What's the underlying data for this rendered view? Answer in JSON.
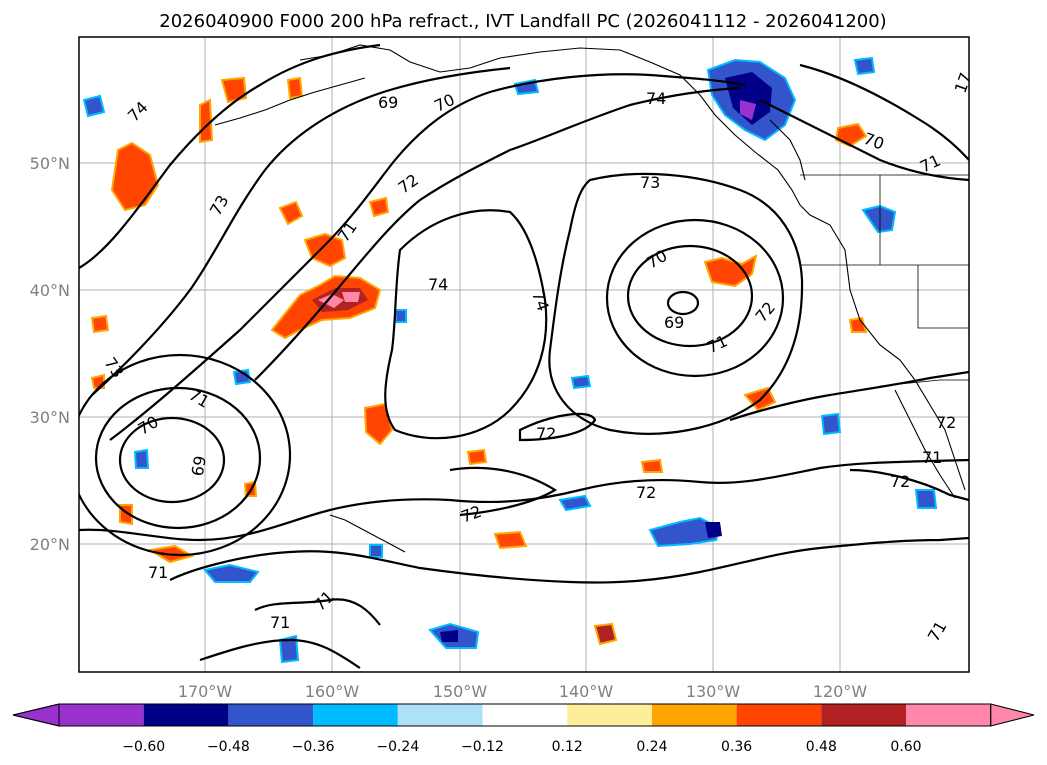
{
  "title": "2026040900 F000 200 hPa refract., IVT Landfall PC (2026041112 - 2026041200)",
  "map": {
    "lon_labels": [
      "170°W",
      "160°W",
      "150°W",
      "140°W",
      "130°W",
      "120°W"
    ],
    "lat_labels": [
      "50°N",
      "40°N",
      "30°N",
      "20°N"
    ]
  },
  "contour_labels": [
    {
      "id": "c74a",
      "text": "74"
    },
    {
      "id": "c69a",
      "text": "69"
    },
    {
      "id": "c70a",
      "text": "70"
    },
    {
      "id": "c74b",
      "text": "74"
    },
    {
      "id": "c17",
      "text": "17"
    },
    {
      "id": "c70b",
      "text": "70"
    },
    {
      "id": "c71a",
      "text": "71"
    },
    {
      "id": "c73a",
      "text": "73"
    },
    {
      "id": "c72a",
      "text": "72"
    },
    {
      "id": "c71b",
      "text": "71"
    },
    {
      "id": "c73b",
      "text": "73"
    },
    {
      "id": "c74c",
      "text": "74"
    },
    {
      "id": "c74d",
      "text": "74"
    },
    {
      "id": "c70c",
      "text": "70"
    },
    {
      "id": "c69b",
      "text": "69"
    },
    {
      "id": "c71c",
      "text": "71"
    },
    {
      "id": "c72b",
      "text": "72"
    },
    {
      "id": "c73c",
      "text": "73"
    },
    {
      "id": "c71d",
      "text": "71"
    },
    {
      "id": "c70d",
      "text": "70"
    },
    {
      "id": "c69c",
      "text": "69"
    },
    {
      "id": "c72c",
      "text": "72"
    },
    {
      "id": "c72d",
      "text": "72"
    },
    {
      "id": "c72e",
      "text": "72"
    },
    {
      "id": "c71e",
      "text": "71"
    },
    {
      "id": "c72f",
      "text": "72"
    },
    {
      "id": "c71f",
      "text": "71"
    },
    {
      "id": "c72g",
      "text": "72"
    },
    {
      "id": "c71g",
      "text": "71"
    },
    {
      "id": "c71h",
      "text": "71"
    },
    {
      "id": "c71i",
      "text": "71"
    }
  ],
  "colorbar": {
    "ticks": [
      "−0.60",
      "−0.48",
      "−0.36",
      "−0.24",
      "−0.12",
      "0.12",
      "0.24",
      "0.36",
      "0.48",
      "0.60"
    ],
    "colors": {
      "under": "#9932cc",
      "bins": [
        "#000088",
        "#3355cc",
        "#00bbff",
        "#aee1f8",
        "#ffffff",
        "#ffee99",
        "#ffa500",
        "#ff4500",
        "#b22222",
        "#ff88aa"
      ],
      "over": "#ff88aa"
    }
  }
}
